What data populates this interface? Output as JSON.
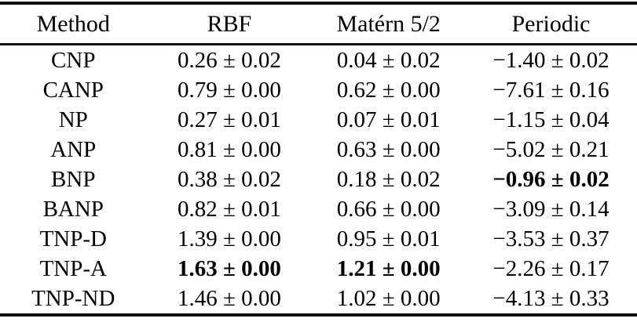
{
  "table": {
    "columns": [
      "Method",
      "RBF",
      "Matérn 5/2",
      "Periodic"
    ],
    "rows": [
      {
        "method": "CNP",
        "values": [
          "0.26 ± 0.02",
          "0.04 ± 0.02",
          "−1.40 ± 0.02"
        ],
        "bold": []
      },
      {
        "method": "CANP",
        "values": [
          "0.79 ± 0.00",
          "0.62 ± 0.00",
          "−7.61 ± 0.16"
        ],
        "bold": []
      },
      {
        "method": "NP",
        "values": [
          "0.27 ± 0.01",
          "0.07 ± 0.01",
          "−1.15 ± 0.04"
        ],
        "bold": []
      },
      {
        "method": "ANP",
        "values": [
          "0.81 ± 0.00",
          "0.63 ± 0.00",
          "−5.02 ± 0.21"
        ],
        "bold": []
      },
      {
        "method": "BNP",
        "values": [
          "0.38 ± 0.02",
          "0.18 ± 0.02",
          "−0.96 ± 0.02"
        ],
        "bold": [
          2
        ]
      },
      {
        "method": "BANP",
        "values": [
          "0.82 ± 0.01",
          "0.66 ± 0.00",
          "−3.09 ± 0.14"
        ],
        "bold": []
      },
      {
        "method": "TNP-D",
        "values": [
          "1.39 ± 0.00",
          "0.95 ± 0.01",
          "−3.53 ± 0.37"
        ],
        "bold": []
      },
      {
        "method": "TNP-A",
        "values": [
          "1.63 ± 0.00",
          "1.21 ± 0.00",
          "−2.26 ± 0.17"
        ],
        "bold": [
          0,
          1
        ]
      },
      {
        "method": "TNP-ND",
        "values": [
          "1.46 ± 0.00",
          "1.02 ± 0.00",
          "−4.13 ± 0.33"
        ],
        "bold": []
      }
    ]
  }
}
